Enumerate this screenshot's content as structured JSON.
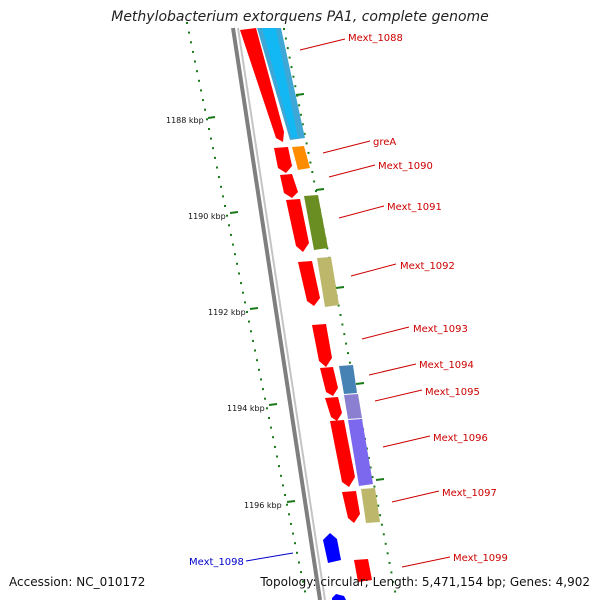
{
  "title": "Methylobacterium extorquens PA1, complete genome",
  "accession_label": "Accession: NC_010172",
  "genome_stats": "Topology: circular; Length: 5,471,154 bp; Genes: 4,902",
  "colors": {
    "cds": "#ff0000",
    "backbone": "#808080",
    "tick": "#1a7a1a",
    "label_red": "#cc0000",
    "label_blue": "#0000cc"
  },
  "ticks": [
    {
      "label": "1188 kbp"
    },
    {
      "label": "1190 kbp"
    },
    {
      "label": "1192 kbp"
    },
    {
      "label": "1194 kbp"
    },
    {
      "label": "1196 kbp"
    }
  ],
  "genes": [
    {
      "name": "Mext_1088",
      "color": "#3fa7d6",
      "strand": "forward"
    },
    {
      "name": "greA",
      "color": "#ff8c00",
      "strand": "forward"
    },
    {
      "name": "Mext_1090",
      "color": "#ff0000",
      "strand": "forward"
    },
    {
      "name": "Mext_1091",
      "color": "#6b8e23",
      "strand": "forward"
    },
    {
      "name": "Mext_1092",
      "color": "#bdb76b",
      "strand": "forward"
    },
    {
      "name": "Mext_1093",
      "color": "#ff0000",
      "strand": "forward"
    },
    {
      "name": "Mext_1094",
      "color": "#4682b4",
      "strand": "forward"
    },
    {
      "name": "Mext_1095",
      "color": "#8a7fd0",
      "strand": "forward"
    },
    {
      "name": "Mext_1096",
      "color": "#7b68ee",
      "strand": "forward"
    },
    {
      "name": "Mext_1097",
      "color": "#bdb76b",
      "strand": "forward"
    },
    {
      "name": "Mext_1098",
      "color": "#0000ff",
      "strand": "reverse"
    },
    {
      "name": "Mext_1099",
      "color": "#ff0000",
      "strand": "forward"
    }
  ]
}
